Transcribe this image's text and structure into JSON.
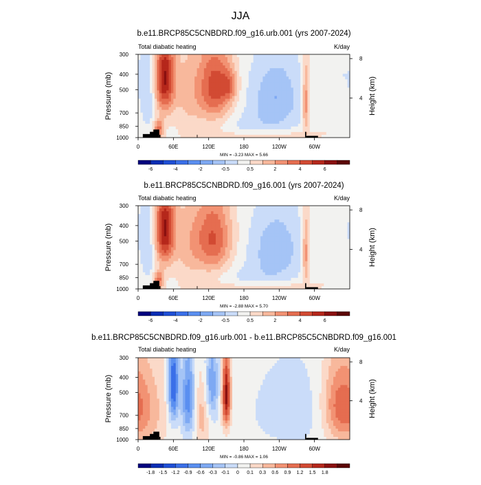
{
  "page_title": "JJA",
  "chart_data": [
    {
      "type": "heatmap",
      "title": "b.e11.BRCP85C5CNBDRD.f09_g16.urb.001 (yrs 2007-2024)",
      "left_label": "Total diabatic heating",
      "right_label": "K/day",
      "ylabel": "Pressure (mb)",
      "ylabel_right": "Height (km)",
      "pressure_ticks": [
        "300",
        "400",
        "500",
        "700",
        "850",
        "1000"
      ],
      "pressure_values": [
        300,
        400,
        500,
        700,
        850,
        1000
      ],
      "height_ticks": [
        "8",
        "4"
      ],
      "height_values": [
        8,
        4
      ],
      "x_ticks": [
        "0",
        "60E",
        "120E",
        "180",
        "120W",
        "60W"
      ],
      "x_values": [
        0,
        60,
        120,
        180,
        240,
        300
      ],
      "xlim": [
        0,
        360
      ],
      "ylim": [
        1000,
        300
      ],
      "stats": "MIN = -3.23   MAX = 5.66",
      "min": -3.23,
      "max": 5.66,
      "levels": [
        "-6",
        "",
        "-4",
        "",
        "-2",
        "",
        "-0.5",
        "",
        "0.5",
        "",
        "2",
        "",
        "4",
        "",
        "6"
      ],
      "palette": [
        "#00007f",
        "#0a2db4",
        "#1f4fd6",
        "#3a6fe8",
        "#5a8ff0",
        "#7ea9f3",
        "#a5c4f6",
        "#cadcf9",
        "#f2f2f0",
        "#fbd9c8",
        "#f8b89c",
        "#f29273",
        "#e56d50",
        "#d24a33",
        "#b5271b",
        "#8a1010",
        "#5c0505"
      ],
      "features": [
        {
          "type": "warm",
          "lon": 45,
          "p": 420,
          "wx": 12,
          "wy": 180,
          "a": 5.0
        },
        {
          "type": "warm",
          "lon": 35,
          "p": 880,
          "wx": 6,
          "wy": 80,
          "a": 3.0
        },
        {
          "type": "warm",
          "lon": 130,
          "p": 480,
          "wx": 20,
          "wy": 200,
          "a": 3.8
        },
        {
          "type": "warm",
          "lon": 155,
          "p": 470,
          "wx": 10,
          "wy": 80,
          "a": 2.0
        },
        {
          "type": "warm",
          "lon": 85,
          "p": 520,
          "wx": 18,
          "wy": 260,
          "a": 1.3
        },
        {
          "type": "warm",
          "lon": 285,
          "p": 600,
          "wx": 4,
          "wy": 220,
          "a": 2.5
        },
        {
          "type": "warm",
          "lon": 210,
          "p": 960,
          "wx": 80,
          "wy": 50,
          "a": 0.9
        },
        {
          "type": "warm",
          "lon": 330,
          "p": 520,
          "wx": 25,
          "wy": 200,
          "a": 0.6
        },
        {
          "type": "cold",
          "lon": 235,
          "p": 560,
          "wx": 30,
          "wy": 200,
          "a": -1.9
        },
        {
          "type": "cold",
          "lon": 18,
          "p": 520,
          "wx": 10,
          "wy": 220,
          "a": -1.2
        },
        {
          "type": "cold",
          "lon": 345,
          "p": 450,
          "wx": 15,
          "wy": 170,
          "a": -0.8
        },
        {
          "type": "cold",
          "lon": 190,
          "p": 850,
          "wx": 40,
          "wy": 120,
          "a": -0.6
        }
      ]
    },
    {
      "type": "heatmap",
      "title": "b.e11.BRCP85C5CNBDRD.f09_g16.001 (yrs 2007-2024)",
      "left_label": "Total diabatic heating",
      "right_label": "K/day",
      "ylabel": "Pressure (mb)",
      "ylabel_right": "Height (km)",
      "pressure_ticks": [
        "300",
        "400",
        "500",
        "700",
        "850",
        "1000"
      ],
      "pressure_values": [
        300,
        400,
        500,
        700,
        850,
        1000
      ],
      "height_ticks": [
        "8",
        "4"
      ],
      "height_values": [
        8,
        4
      ],
      "x_ticks": [
        "0",
        "60E",
        "120E",
        "180",
        "120W",
        "60W"
      ],
      "x_values": [
        0,
        60,
        120,
        180,
        240,
        300
      ],
      "xlim": [
        0,
        360
      ],
      "ylim": [
        1000,
        300
      ],
      "stats": "MIN = -2.88   MAX = 5.70",
      "min": -2.88,
      "max": 5.7,
      "levels": [
        "-6",
        "",
        "-4",
        "",
        "-2",
        "",
        "-0.5",
        "",
        "0.5",
        "",
        "2",
        "",
        "4",
        "",
        "6"
      ],
      "palette": [
        "#00007f",
        "#0a2db4",
        "#1f4fd6",
        "#3a6fe8",
        "#5a8ff0",
        "#7ea9f3",
        "#a5c4f6",
        "#cadcf9",
        "#f2f2f0",
        "#fbd9c8",
        "#f8b89c",
        "#f29273",
        "#e56d50",
        "#d24a33",
        "#b5271b",
        "#8a1010",
        "#5c0505"
      ],
      "features": [
        {
          "type": "warm",
          "lon": 45,
          "p": 420,
          "wx": 12,
          "wy": 180,
          "a": 5.1
        },
        {
          "type": "warm",
          "lon": 35,
          "p": 880,
          "wx": 6,
          "wy": 80,
          "a": 3.0
        },
        {
          "type": "warm",
          "lon": 128,
          "p": 480,
          "wx": 22,
          "wy": 200,
          "a": 3.5
        },
        {
          "type": "warm",
          "lon": 85,
          "p": 520,
          "wx": 18,
          "wy": 260,
          "a": 1.3
        },
        {
          "type": "warm",
          "lon": 285,
          "p": 600,
          "wx": 4,
          "wy": 220,
          "a": 2.4
        },
        {
          "type": "warm",
          "lon": 210,
          "p": 960,
          "wx": 80,
          "wy": 50,
          "a": 0.9
        },
        {
          "type": "warm",
          "lon": 330,
          "p": 520,
          "wx": 25,
          "wy": 200,
          "a": 0.6
        },
        {
          "type": "cold",
          "lon": 235,
          "p": 560,
          "wx": 30,
          "wy": 200,
          "a": -1.8
        },
        {
          "type": "cold",
          "lon": 18,
          "p": 520,
          "wx": 10,
          "wy": 220,
          "a": -1.2
        },
        {
          "type": "cold",
          "lon": 345,
          "p": 450,
          "wx": 15,
          "wy": 170,
          "a": -0.8
        },
        {
          "type": "cold",
          "lon": 190,
          "p": 850,
          "wx": 40,
          "wy": 120,
          "a": -0.6
        }
      ]
    },
    {
      "type": "heatmap",
      "title": "b.e11.BRCP85C5CNBDRD.f09_g16.urb.001 - b.e11.BRCP85C5CNBDRD.f09_g16.001",
      "left_label": "Total diabatic heating",
      "right_label": "K/day",
      "ylabel": "Pressure (mb)",
      "ylabel_right": "Height (km)",
      "pressure_ticks": [
        "300",
        "400",
        "500",
        "700",
        "850",
        "1000"
      ],
      "pressure_values": [
        300,
        400,
        500,
        700,
        850,
        1000
      ],
      "height_ticks": [
        "8",
        "4"
      ],
      "height_values": [
        8,
        4
      ],
      "x_ticks": [
        "0",
        "60E",
        "120E",
        "180",
        "120W",
        "60W"
      ],
      "x_values": [
        0,
        60,
        120,
        180,
        240,
        300
      ],
      "xlim": [
        0,
        360
      ],
      "ylim": [
        1000,
        300
      ],
      "stats": "MIN = -0.86   MAX = 1.06",
      "min": -0.86,
      "max": 1.06,
      "levels": [
        "-1.8",
        "-1.5",
        "-1.2",
        "-0.9",
        "-0.6",
        "-0.3",
        "-0.1",
        "0",
        "0.1",
        "0.3",
        "0.6",
        "0.9",
        "1.2",
        "1.5",
        "1.8"
      ],
      "palette": [
        "#00007f",
        "#0a2db4",
        "#1f4fd6",
        "#3a6fe8",
        "#5a8ff0",
        "#7ea9f3",
        "#a5c4f6",
        "#cadcf9",
        "#f2f2f0",
        "#fbd9c8",
        "#f8b89c",
        "#f29273",
        "#e56d50",
        "#d24a33",
        "#b5271b",
        "#8a1010",
        "#5c0505"
      ],
      "features": [
        {
          "type": "warm",
          "lon": 150,
          "p": 520,
          "wx": 5,
          "wy": 200,
          "a": 1.0
        },
        {
          "type": "warm",
          "lon": 10,
          "p": 650,
          "wx": 25,
          "wy": 300,
          "a": 0.35
        },
        {
          "type": "warm",
          "lon": 340,
          "p": 600,
          "wx": 20,
          "wy": 250,
          "a": 0.45
        },
        {
          "type": "warm",
          "lon": 110,
          "p": 700,
          "wx": 10,
          "wy": 250,
          "a": 0.3
        },
        {
          "type": "cold",
          "lon": 60,
          "p": 450,
          "wx": 6,
          "wy": 200,
          "a": -0.85
        },
        {
          "type": "cold",
          "lon": 85,
          "p": 550,
          "wx": 8,
          "wy": 250,
          "a": -0.6
        },
        {
          "type": "cold",
          "lon": 125,
          "p": 450,
          "wx": 8,
          "wy": 200,
          "a": -0.5
        },
        {
          "type": "cold",
          "lon": 260,
          "p": 650,
          "wx": 50,
          "wy": 300,
          "a": -0.15
        }
      ]
    }
  ]
}
